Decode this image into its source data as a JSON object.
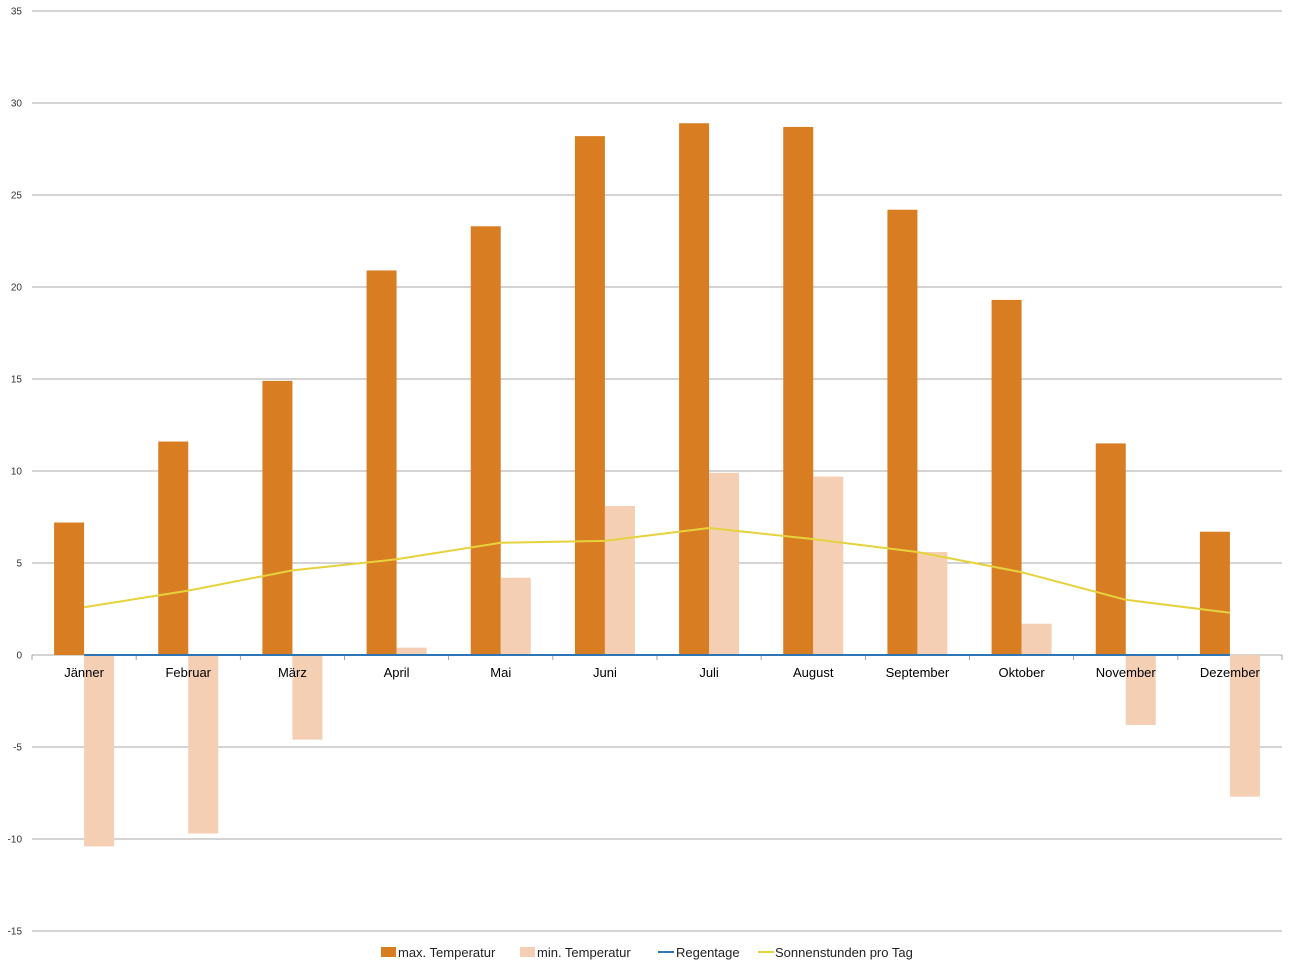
{
  "chart_data": {
    "type": "bar",
    "categories": [
      "Jänner",
      "Februar",
      "März",
      "April",
      "Mai",
      "Juni",
      "Juli",
      "August",
      "September",
      "Oktober",
      "November",
      "Dezember"
    ],
    "series": [
      {
        "name": "max. Temperatur",
        "type": "bar",
        "color": "#d97d23",
        "values": [
          7.2,
          11.6,
          14.9,
          20.9,
          23.3,
          28.2,
          28.9,
          28.7,
          24.2,
          19.3,
          11.5,
          6.7
        ]
      },
      {
        "name": "min. Temperatur",
        "type": "bar",
        "color": "#f4cfb4",
        "values": [
          -10.4,
          -9.7,
          -4.6,
          0.4,
          4.2,
          8.1,
          9.9,
          9.7,
          5.6,
          1.7,
          -3.8,
          -7.7
        ]
      },
      {
        "name": "Regentage",
        "type": "line",
        "color": "#2e75b6",
        "values": [
          0,
          0,
          0,
          0,
          0,
          0,
          0,
          0,
          0,
          0,
          0,
          0
        ]
      },
      {
        "name": "Sonnenstunden pro Tag",
        "type": "line",
        "color": "#e6d23c",
        "values": [
          2.6,
          3.5,
          4.6,
          5.2,
          6.1,
          6.2,
          6.9,
          6.3,
          5.6,
          4.5,
          3.0,
          2.3
        ]
      }
    ],
    "ylim": [
      -15,
      35
    ],
    "yticks": [
      35,
      30,
      25,
      20,
      15,
      10,
      5,
      0,
      -5,
      -10,
      -15
    ],
    "grid": true,
    "legend": "bottom",
    "title": "",
    "xlabel": "",
    "ylabel": ""
  }
}
